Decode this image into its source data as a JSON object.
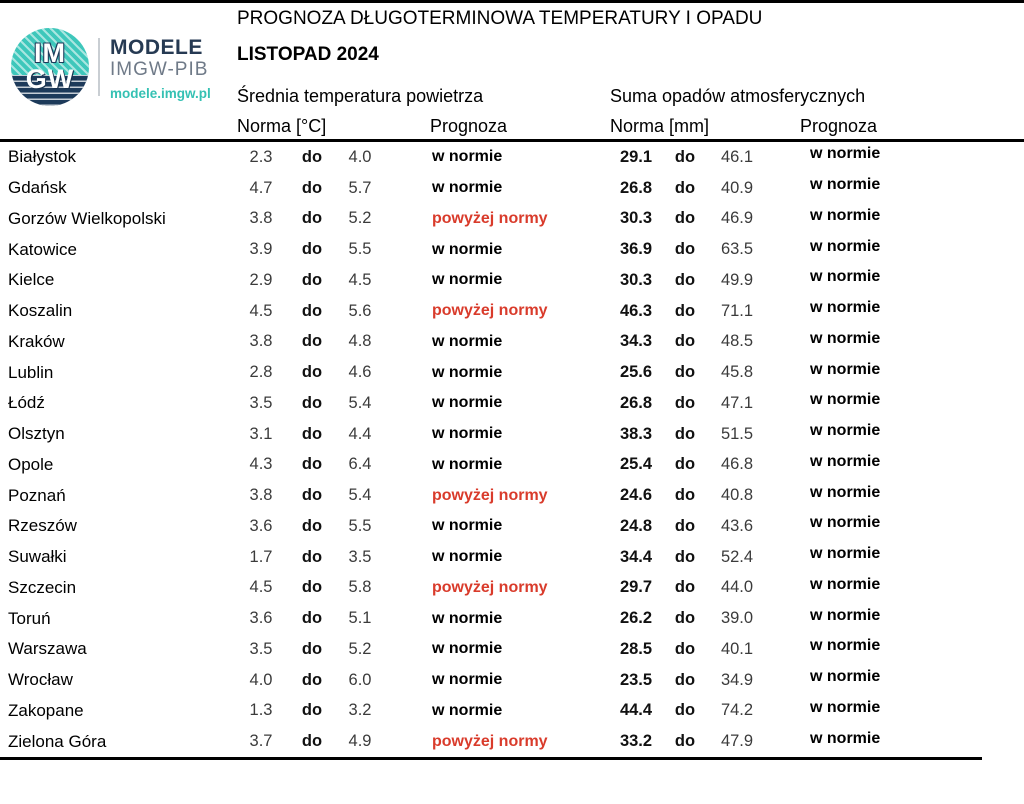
{
  "colors": {
    "teal": "#3ec7bb",
    "navy": "#263a53",
    "gray": "#6f7a88",
    "red": "#d93b2b"
  },
  "logo": {
    "im": "IM",
    "gw": "GW",
    "brand": "MODELE",
    "org": "IMGW-PIB",
    "url": "modele.imgw.pl"
  },
  "header": {
    "title": "PROGNOZA DŁUGOTERMINOWA TEMPERATURY I OPADU",
    "subtitle": "LISTOPAD 2024"
  },
  "table": {
    "group_headers": {
      "temperature": "Średnia temperatura powietrza",
      "precipitation": "Suma opadów atmosferycznych"
    },
    "sub_headers": {
      "temp_norm": "Norma [°C]",
      "temp_forecast": "Prognoza",
      "precip_norm": "Norma [mm]",
      "precip_forecast": "Prognoza"
    },
    "range_separator": "do",
    "forecast_values": {
      "normal": "w normie",
      "above": "powyżej normy"
    },
    "rows": [
      {
        "city": "Białystok",
        "t_low": "2.3",
        "t_high": "4.0",
        "t_prog": "w normie",
        "t_above": false,
        "p_low": "29.1",
        "p_high": "46.1",
        "p_prog": "w normie",
        "p_above": false
      },
      {
        "city": "Gdańsk",
        "t_low": "4.7",
        "t_high": "5.7",
        "t_prog": "w normie",
        "t_above": false,
        "p_low": "26.8",
        "p_high": "40.9",
        "p_prog": "w normie",
        "p_above": false
      },
      {
        "city": "Gorzów Wielkopolski",
        "t_low": "3.8",
        "t_high": "5.2",
        "t_prog": "powyżej normy",
        "t_above": true,
        "p_low": "30.3",
        "p_high": "46.9",
        "p_prog": "w normie",
        "p_above": false
      },
      {
        "city": "Katowice",
        "t_low": "3.9",
        "t_high": "5.5",
        "t_prog": "w normie",
        "t_above": false,
        "p_low": "36.9",
        "p_high": "63.5",
        "p_prog": "w normie",
        "p_above": false
      },
      {
        "city": "Kielce",
        "t_low": "2.9",
        "t_high": "4.5",
        "t_prog": "w normie",
        "t_above": false,
        "p_low": "30.3",
        "p_high": "49.9",
        "p_prog": "w normie",
        "p_above": false
      },
      {
        "city": "Koszalin",
        "t_low": "4.5",
        "t_high": "5.6",
        "t_prog": "powyżej normy",
        "t_above": true,
        "p_low": "46.3",
        "p_high": "71.1",
        "p_prog": "w normie",
        "p_above": false
      },
      {
        "city": "Kraków",
        "t_low": "3.8",
        "t_high": "4.8",
        "t_prog": "w normie",
        "t_above": false,
        "p_low": "34.3",
        "p_high": "48.5",
        "p_prog": "w normie",
        "p_above": false
      },
      {
        "city": "Lublin",
        "t_low": "2.8",
        "t_high": "4.6",
        "t_prog": "w normie",
        "t_above": false,
        "p_low": "25.6",
        "p_high": "45.8",
        "p_prog": "w normie",
        "p_above": false
      },
      {
        "city": "Łódź",
        "t_low": "3.5",
        "t_high": "5.4",
        "t_prog": "w normie",
        "t_above": false,
        "p_low": "26.8",
        "p_high": "47.1",
        "p_prog": "w normie",
        "p_above": false
      },
      {
        "city": "Olsztyn",
        "t_low": "3.1",
        "t_high": "4.4",
        "t_prog": "w normie",
        "t_above": false,
        "p_low": "38.3",
        "p_high": "51.5",
        "p_prog": "w normie",
        "p_above": false
      },
      {
        "city": "Opole",
        "t_low": "4.3",
        "t_high": "6.4",
        "t_prog": "w normie",
        "t_above": false,
        "p_low": "25.4",
        "p_high": "46.8",
        "p_prog": "w normie",
        "p_above": false
      },
      {
        "city": "Poznań",
        "t_low": "3.8",
        "t_high": "5.4",
        "t_prog": "powyżej normy",
        "t_above": true,
        "p_low": "24.6",
        "p_high": "40.8",
        "p_prog": "w normie",
        "p_above": false
      },
      {
        "city": "Rzeszów",
        "t_low": "3.6",
        "t_high": "5.5",
        "t_prog": "w normie",
        "t_above": false,
        "p_low": "24.8",
        "p_high": "43.6",
        "p_prog": "w normie",
        "p_above": false
      },
      {
        "city": "Suwałki",
        "t_low": "1.7",
        "t_high": "3.5",
        "t_prog": "w normie",
        "t_above": false,
        "p_low": "34.4",
        "p_high": "52.4",
        "p_prog": "w normie",
        "p_above": false
      },
      {
        "city": "Szczecin",
        "t_low": "4.5",
        "t_high": "5.8",
        "t_prog": "powyżej normy",
        "t_above": true,
        "p_low": "29.7",
        "p_high": "44.0",
        "p_prog": "w normie",
        "p_above": false
      },
      {
        "city": "Toruń",
        "t_low": "3.6",
        "t_high": "5.1",
        "t_prog": "w normie",
        "t_above": false,
        "p_low": "26.2",
        "p_high": "39.0",
        "p_prog": "w normie",
        "p_above": false
      },
      {
        "city": "Warszawa",
        "t_low": "3.5",
        "t_high": "5.2",
        "t_prog": "w normie",
        "t_above": false,
        "p_low": "28.5",
        "p_high": "40.1",
        "p_prog": "w normie",
        "p_above": false
      },
      {
        "city": "Wrocław",
        "t_low": "4.0",
        "t_high": "6.0",
        "t_prog": "w normie",
        "t_above": false,
        "p_low": "23.5",
        "p_high": "34.9",
        "p_prog": "w normie",
        "p_above": false
      },
      {
        "city": "Zakopane",
        "t_low": "1.3",
        "t_high": "3.2",
        "t_prog": "w normie",
        "t_above": false,
        "p_low": "44.4",
        "p_high": "74.2",
        "p_prog": "w normie",
        "p_above": false
      },
      {
        "city": "Zielona Góra",
        "t_low": "3.7",
        "t_high": "4.9",
        "t_prog": "powyżej normy",
        "t_above": true,
        "p_low": "33.2",
        "p_high": "47.9",
        "p_prog": "w normie",
        "p_above": false
      }
    ]
  }
}
